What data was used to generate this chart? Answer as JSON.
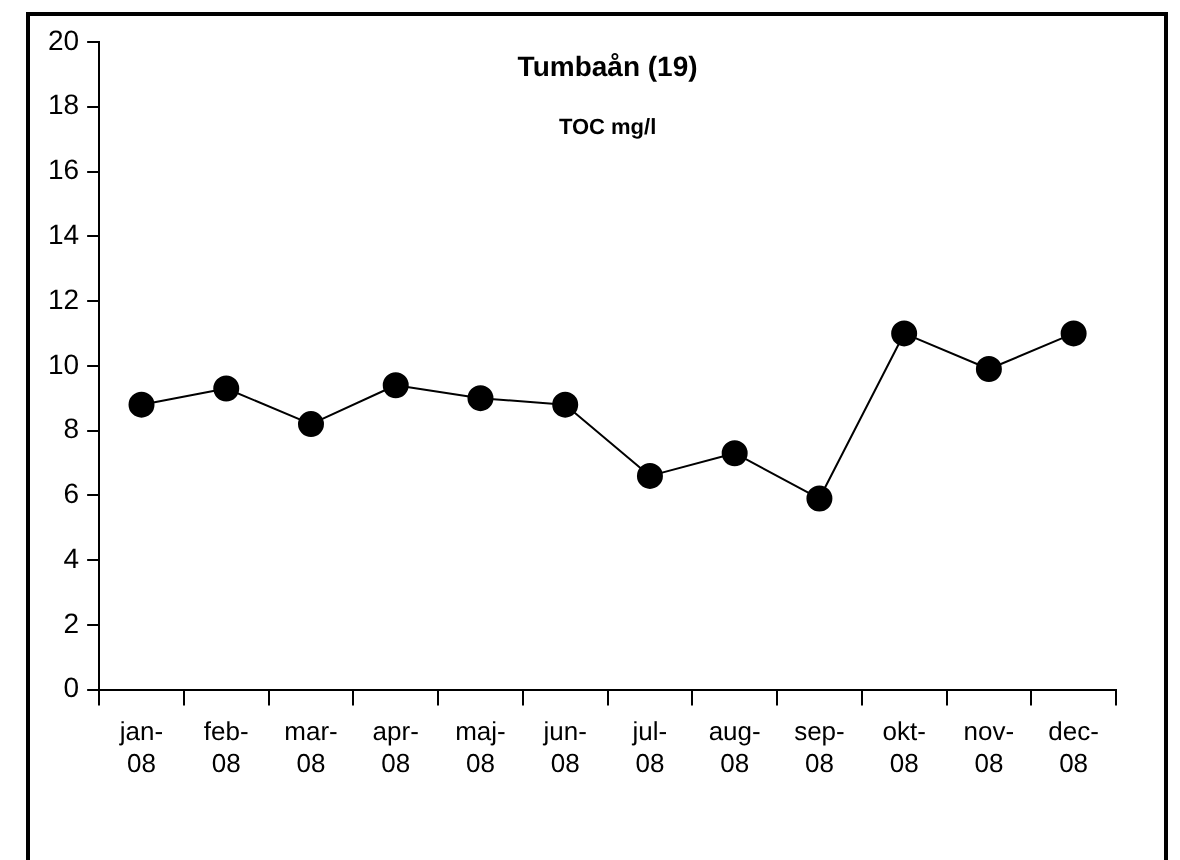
{
  "chart_data": {
    "type": "line",
    "title": "Tumbaån (19)",
    "subtitle": "TOC mg/l",
    "categories": [
      "jan-08",
      "feb-08",
      "mar-08",
      "apr-08",
      "maj-08",
      "jun-08",
      "jul-08",
      "aug-08",
      "sep-08",
      "okt-08",
      "nov-08",
      "dec-08"
    ],
    "series": [
      {
        "color": "#000000",
        "values": [
          8.8,
          9.3,
          8.2,
          9.4,
          9.0,
          8.8,
          6.6,
          7.3,
          5.9,
          11.0,
          9.9,
          11.0
        ]
      }
    ],
    "ylim": [
      0,
      20
    ],
    "yticks": [
      0,
      2,
      4,
      6,
      8,
      10,
      12,
      14,
      16,
      18,
      20
    ],
    "grid": false,
    "legend": false,
    "marker": "circle",
    "line_style": "solid"
  }
}
